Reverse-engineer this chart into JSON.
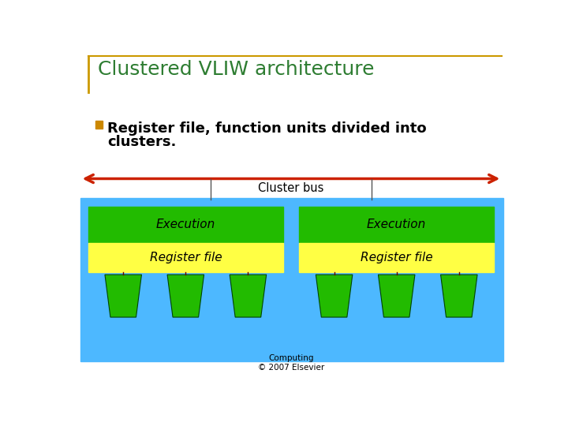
{
  "title": "Clustered VLIW architecture",
  "title_color": "#2e7d32",
  "title_fontsize": 18,
  "bullet_text_line1": "Register file, function units divided into",
  "bullet_text_line2": "clusters.",
  "bullet_color": "#cc8800",
  "cluster_bus_label": "Cluster bus",
  "execution_label": "Execution",
  "register_file_label": "Register file",
  "footer_text": "Computing\n© 2007 Elsevier",
  "bg_color": "#ffffff",
  "blue_color": "#4db8ff",
  "green_color": "#22bb00",
  "yellow_color": "#ffff44",
  "red_arrow_color": "#cc2200",
  "title_line_color": "#cc9900",
  "divider_color": "#555555"
}
